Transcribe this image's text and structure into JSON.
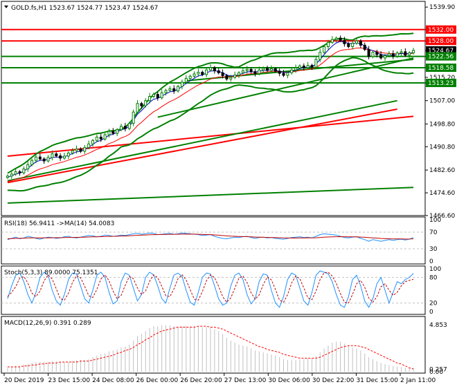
{
  "header": {
    "symbol": "GOLD.fs,H1",
    "ohlc": "1523.67 1524.77 1523.47 1524.67"
  },
  "colors": {
    "bull_candle": "#008000",
    "bear_candle": "#000000",
    "bollinger": "#008000",
    "ma_fast": "#0000cc",
    "ma_slow": "#ff0000",
    "resistance": "#ff0000",
    "support": "#008000",
    "trend_line_green": "#008000",
    "trend_line_red": "#ff0000",
    "rsi": "#1e90ff",
    "rsi_ma": "#c00000",
    "stoch_main": "#1e90ff",
    "stoch_signal": "#c00000",
    "macd_hist": "#c0c0c0",
    "macd_signal": "#ff0000",
    "level_label_red": "#ff0000",
    "level_label_green": "#008000",
    "current_price_label": "#000000"
  },
  "chart_data": [
    {
      "type": "candlestick",
      "title": "GOLD.fs,H1",
      "ylim": [
        1466.6,
        1541.9
      ],
      "y_ticks": [
        "1539.90",
        "1532.00",
        "1528.00",
        "1524.67",
        "1522.56",
        "1518.58",
        "1515.20",
        "1513.23",
        "1507.00",
        "1498.80",
        "1490.80",
        "1482.60",
        "1474.60",
        "1466.60"
      ],
      "x_ticks": [
        "20 Dec 2019",
        "23 Dec 15:00",
        "24 Dec 08:00",
        "26 Dec 00:00",
        "26 Dec 20:00",
        "27 Dec 13:00",
        "30 Dec 06:00",
        "30 Dec 22:00",
        "31 Dec 15:00",
        "2 Jan 11:00"
      ],
      "resistance_levels": [
        1532.0,
        1528.0
      ],
      "support_levels": [
        1522.56,
        1518.58,
        1513.23
      ],
      "current_price": 1524.67,
      "price_labels": [
        {
          "value": "1532.00",
          "color": "red"
        },
        {
          "value": "1528.00",
          "color": "red"
        },
        {
          "value": "1524.67",
          "color": "black"
        },
        {
          "value": "1522.56",
          "color": "green"
        },
        {
          "value": "1518.58",
          "color": "green"
        },
        {
          "value": "1513.23",
          "color": "green"
        }
      ],
      "closes": [
        1480.5,
        1481.2,
        1482.0,
        1481.6,
        1483.0,
        1484.5,
        1486.0,
        1487.2,
        1486.5,
        1485.8,
        1487.0,
        1488.3,
        1487.6,
        1486.8,
        1487.5,
        1488.6,
        1489.4,
        1490.0,
        1489.2,
        1490.5,
        1491.8,
        1493.0,
        1494.2,
        1493.5,
        1495.0,
        1496.2,
        1495.5,
        1496.8,
        1498.0,
        1497.2,
        1499.0,
        1503.0,
        1506.0,
        1505.2,
        1507.0,
        1508.5,
        1509.2,
        1508.0,
        1509.8,
        1510.6,
        1511.2,
        1510.4,
        1512.0,
        1513.5,
        1514.8,
        1515.6,
        1516.4,
        1517.0,
        1516.2,
        1517.8,
        1518.6,
        1517.5,
        1516.8,
        1515.8,
        1514.6,
        1515.2,
        1516.0,
        1516.8,
        1517.5,
        1518.0,
        1517.2,
        1516.5,
        1517.8,
        1518.4,
        1517.6,
        1518.2,
        1517.4,
        1516.6,
        1515.9,
        1516.8,
        1517.8,
        1518.5,
        1519.2,
        1518.6,
        1519.4,
        1518.8,
        1521.5,
        1524.0,
        1526.0,
        1527.5,
        1528.5,
        1529.0,
        1528.2,
        1527.0,
        1526.0,
        1527.2,
        1528.0,
        1526.5,
        1525.0,
        1522.5,
        1524.0,
        1523.2,
        1522.0,
        1522.8,
        1523.5,
        1522.6,
        1523.8,
        1524.2,
        1523.0,
        1523.8,
        1524.67
      ],
      "ma_fast": [
        1480.0,
        1480.6,
        1481.2,
        1481.5,
        1482.2,
        1483.2,
        1484.4,
        1485.5,
        1486.0,
        1486.1,
        1486.4,
        1487.0,
        1487.2,
        1487.1,
        1487.3,
        1487.8,
        1488.4,
        1489.0,
        1489.2,
        1489.8,
        1490.6,
        1491.6,
        1492.6,
        1493.0,
        1493.9,
        1494.8,
        1495.2,
        1495.9,
        1496.8,
        1497.1,
        1498.0,
        1500.0,
        1502.2,
        1503.5,
        1505.0,
        1506.4,
        1507.5,
        1507.8,
        1508.6,
        1509.4,
        1510.1,
        1510.3,
        1511.0,
        1512.0,
        1513.0,
        1514.0,
        1514.9,
        1515.7,
        1516.0,
        1516.7,
        1517.4,
        1517.5,
        1517.3,
        1516.8,
        1516.0,
        1515.7,
        1515.8,
        1516.1,
        1516.6,
        1517.1,
        1517.2,
        1517.0,
        1517.3,
        1517.7,
        1517.7,
        1517.9,
        1517.7,
        1517.3,
        1516.9,
        1516.9,
        1517.2,
        1517.7,
        1518.3,
        1518.5,
        1518.9,
        1518.9,
        1519.9,
        1521.5,
        1523.2,
        1524.8,
        1526.2,
        1527.3,
        1527.8,
        1527.6,
        1527.1,
        1527.0,
        1527.3,
        1527.0,
        1526.3,
        1525.0,
        1524.6,
        1524.0,
        1523.2,
        1523.0,
        1523.1,
        1522.9,
        1523.2,
        1523.6,
        1523.4,
        1523.6,
        1524.0
      ],
      "ma_slow": [
        1478.5,
        1478.9,
        1479.3,
        1479.6,
        1480.1,
        1480.8,
        1481.6,
        1482.4,
        1483.0,
        1483.4,
        1483.9,
        1484.5,
        1484.9,
        1485.2,
        1485.6,
        1486.1,
        1486.6,
        1487.1,
        1487.4,
        1487.9,
        1488.5,
        1489.2,
        1489.9,
        1490.4,
        1491.1,
        1491.9,
        1492.4,
        1493.1,
        1493.9,
        1494.4,
        1495.2,
        1496.6,
        1498.2,
        1499.4,
        1500.7,
        1502.0,
        1503.1,
        1503.9,
        1504.9,
        1505.8,
        1506.7,
        1507.3,
        1508.1,
        1509.0,
        1509.9,
        1510.8,
        1511.7,
        1512.5,
        1513.1,
        1513.9,
        1514.6,
        1515.0,
        1515.3,
        1515.4,
        1515.3,
        1515.4,
        1515.5,
        1515.7,
        1516.0,
        1516.3,
        1516.5,
        1516.5,
        1516.7,
        1517.0,
        1517.1,
        1517.3,
        1517.3,
        1517.2,
        1517.0,
        1517.0,
        1517.1,
        1517.3,
        1517.6,
        1517.7,
        1518.0,
        1518.1,
        1518.6,
        1519.6,
        1520.7,
        1521.9,
        1523.0,
        1524.0,
        1524.6,
        1524.9,
        1525.0,
        1525.2,
        1525.5,
        1525.5,
        1525.3,
        1524.8,
        1524.6,
        1524.3,
        1523.9,
        1523.7,
        1523.6,
        1523.5,
        1523.5,
        1523.6,
        1523.5,
        1523.5,
        1523.7
      ],
      "trend_lines": [
        {
          "color": "red",
          "from": [
            0,
            1487.5
          ],
          "to": [
            100,
            1501.5
          ]
        },
        {
          "color": "green",
          "from": [
            0,
            1471.0
          ],
          "to": [
            100,
            1476.5
          ]
        },
        {
          "color": "green",
          "from": [
            0,
            1478.8
          ],
          "to": [
            96,
            1507.0
          ]
        },
        {
          "color": "red",
          "from": [
            0,
            1478.2
          ],
          "to": [
            96,
            1504.0
          ]
        },
        {
          "color": "green",
          "from": [
            37,
            1501.2
          ],
          "to": [
            100,
            1522.0
          ]
        },
        {
          "color": "green",
          "from": [
            44,
            1514.0
          ],
          "to": [
            100,
            1521.5
          ]
        }
      ]
    },
    {
      "type": "line",
      "title": "RSI(18) 56.9411  ->MA(14) 54.0083",
      "ylim": [
        0,
        100
      ],
      "y_ticks": [
        "100",
        "70",
        "30",
        "0"
      ],
      "levels": [
        70,
        30
      ],
      "series": [
        {
          "name": "RSI(18)",
          "values": [
            52,
            55,
            58,
            54,
            56,
            60,
            58,
            55,
            53,
            56,
            58,
            57,
            55,
            56,
            59,
            60,
            57,
            56,
            58,
            60,
            62,
            61,
            59,
            60,
            63,
            62,
            60,
            61,
            63,
            62,
            64,
            66,
            67,
            65,
            66,
            68,
            67,
            64,
            65,
            66,
            67,
            65,
            66,
            68,
            67,
            66,
            65,
            64,
            62,
            63,
            64,
            60,
            57,
            55,
            54,
            56,
            58,
            57,
            59,
            60,
            57,
            55,
            57,
            58,
            56,
            57,
            55,
            54,
            53,
            55,
            57,
            58,
            59,
            57,
            58,
            56,
            60,
            64,
            66,
            65,
            64,
            63,
            60,
            57,
            56,
            58,
            59,
            55,
            52,
            48,
            52,
            50,
            48,
            50,
            52,
            50,
            52,
            53,
            51,
            53,
            56.94
          ]
        },
        {
          "name": "MA(14)",
          "values": [
            54,
            54.5,
            55,
            55.2,
            55.5,
            56,
            56.2,
            56.1,
            56,
            56.1,
            56.3,
            56.5,
            56.6,
            56.7,
            57,
            57.3,
            57.4,
            57.5,
            57.7,
            58,
            58.4,
            58.7,
            58.9,
            59.1,
            59.5,
            59.8,
            60,
            60.2,
            60.6,
            60.8,
            61.2,
            61.8,
            62.4,
            62.8,
            63.2,
            63.7,
            64,
            64.1,
            64.3,
            64.6,
            64.8,
            64.9,
            65,
            65.2,
            65.3,
            65.2,
            65.1,
            64.9,
            64.5,
            64.2,
            64,
            63.4,
            62.6,
            61.8,
            61,
            60.4,
            60,
            59.6,
            59.3,
            59.1,
            58.7,
            58.2,
            57.9,
            57.7,
            57.4,
            57.2,
            56.9,
            56.6,
            56.2,
            56,
            55.9,
            55.9,
            56,
            56,
            56.1,
            56.1,
            56.5,
            57.1,
            57.8,
            58.3,
            58.7,
            59,
            59.1,
            59,
            58.8,
            58.7,
            58.6,
            58.2,
            57.6,
            56.8,
            56.2,
            55.6,
            54.9,
            54.4,
            54,
            53.7,
            53.6,
            53.6,
            53.4,
            53.5,
            54.01
          ]
        }
      ]
    },
    {
      "type": "line",
      "title": "Stoch(5,3,3) 89.0000 75.1351",
      "ylim": [
        0,
        100
      ],
      "y_ticks": [
        "100",
        "80",
        "20",
        "0"
      ],
      "levels": [
        80,
        20
      ],
      "series": [
        {
          "name": "Stoch main",
          "values": [
            30,
            60,
            85,
            90,
            70,
            40,
            20,
            45,
            80,
            92,
            85,
            50,
            25,
            15,
            40,
            75,
            90,
            88,
            60,
            30,
            20,
            50,
            85,
            92,
            80,
            45,
            18,
            25,
            70,
            90,
            85,
            55,
            25,
            40,
            80,
            92,
            86,
            60,
            30,
            20,
            55,
            85,
            90,
            82,
            50,
            22,
            15,
            45,
            80,
            90,
            88,
            60,
            30,
            15,
            20,
            60,
            85,
            90,
            75,
            40,
            18,
            30,
            70,
            88,
            85,
            50,
            20,
            10,
            35,
            75,
            90,
            85,
            55,
            25,
            15,
            45,
            85,
            95,
            92,
            88,
            70,
            40,
            15,
            10,
            35,
            75,
            85,
            60,
            25,
            10,
            30,
            65,
            80,
            50,
            20,
            45,
            70,
            65,
            75,
            80,
            89
          ]
        },
        {
          "name": "Stoch signal",
          "values": [
            35,
            45,
            58,
            78,
            82,
            67,
            43,
            35,
            48,
            72,
            86,
            76,
            53,
            30,
            27,
            43,
            68,
            84,
            79,
            59,
            37,
            33,
            52,
            76,
            86,
            72,
            48,
            30,
            38,
            62,
            82,
            77,
            55,
            40,
            48,
            71,
            86,
            79,
            59,
            37,
            35,
            53,
            77,
            86,
            74,
            51,
            29,
            27,
            47,
            72,
            86,
            79,
            59,
            35,
            22,
            32,
            55,
            78,
            83,
            68,
            44,
            29,
            39,
            63,
            81,
            74,
            52,
            27,
            22,
            40,
            67,
            83,
            77,
            55,
            32,
            28,
            48,
            75,
            91,
            92,
            83,
            66,
            42,
            22,
            20,
            40,
            65,
            73,
            57,
            32,
            22,
            35,
            58,
            65,
            50,
            38,
            45,
            60,
            70,
            73,
            75.14
          ]
        }
      ]
    },
    {
      "type": "bar",
      "title": "MACD(12,26,9) 0.391 0.289",
      "ylim": [
        0,
        4.853
      ],
      "y_ticks": [
        "4.853",
        "0.257",
        "0.00"
      ],
      "series": [
        {
          "name": "MACD(12,26,9)",
          "values": [
            0.4,
            0.5,
            0.6,
            0.6,
            0.7,
            0.8,
            0.9,
            1.0,
            1.0,
            1.0,
            1.0,
            1.1,
            1.1,
            1.0,
            1.0,
            1.0,
            1.1,
            1.2,
            1.2,
            1.2,
            1.3,
            1.5,
            1.7,
            1.8,
            1.9,
            2.1,
            2.2,
            2.3,
            2.5,
            2.6,
            2.8,
            3.2,
            3.7,
            3.9,
            4.2,
            4.5,
            4.7,
            4.7,
            4.8,
            4.8,
            4.8,
            4.7,
            4.7,
            4.7,
            4.7,
            4.7,
            4.7,
            4.7,
            4.6,
            4.6,
            4.6,
            4.4,
            4.2,
            3.9,
            3.5,
            3.2,
            3.0,
            2.8,
            2.7,
            2.6,
            2.4,
            2.2,
            2.1,
            2.0,
            1.9,
            1.8,
            1.7,
            1.5,
            1.3,
            1.2,
            1.2,
            1.2,
            1.3,
            1.3,
            1.4,
            1.4,
            1.6,
            2.0,
            2.4,
            2.7,
            3.0,
            3.1,
            3.1,
            2.9,
            2.7,
            2.5,
            2.4,
            2.2,
            1.9,
            1.5,
            1.3,
            1.1,
            0.9,
            0.8,
            0.7,
            0.6,
            0.5,
            0.5,
            0.4,
            0.4,
            0.39
          ]
        },
        {
          "name": "Signal",
          "values": [
            0.5,
            0.5,
            0.5,
            0.5,
            0.6,
            0.6,
            0.7,
            0.7,
            0.8,
            0.8,
            0.9,
            0.9,
            0.9,
            1.0,
            1.0,
            1.0,
            1.0,
            1.0,
            1.1,
            1.1,
            1.1,
            1.2,
            1.3,
            1.4,
            1.5,
            1.6,
            1.7,
            1.9,
            2.0,
            2.2,
            2.3,
            2.5,
            2.8,
            3.0,
            3.3,
            3.5,
            3.8,
            4.0,
            4.2,
            4.3,
            4.4,
            4.5,
            4.6,
            4.6,
            4.6,
            4.6,
            4.6,
            4.7,
            4.7,
            4.7,
            4.6,
            4.6,
            4.5,
            4.4,
            4.2,
            4.0,
            3.8,
            3.6,
            3.4,
            3.2,
            3.0,
            2.8,
            2.6,
            2.5,
            2.3,
            2.2,
            2.1,
            2.0,
            1.8,
            1.7,
            1.6,
            1.5,
            1.4,
            1.4,
            1.4,
            1.4,
            1.4,
            1.5,
            1.7,
            1.9,
            2.1,
            2.3,
            2.5,
            2.6,
            2.7,
            2.7,
            2.7,
            2.6,
            2.5,
            2.3,
            2.1,
            1.9,
            1.7,
            1.5,
            1.3,
            1.1,
            0.9,
            0.8,
            0.6,
            0.4,
            0.289
          ]
        }
      ]
    }
  ]
}
